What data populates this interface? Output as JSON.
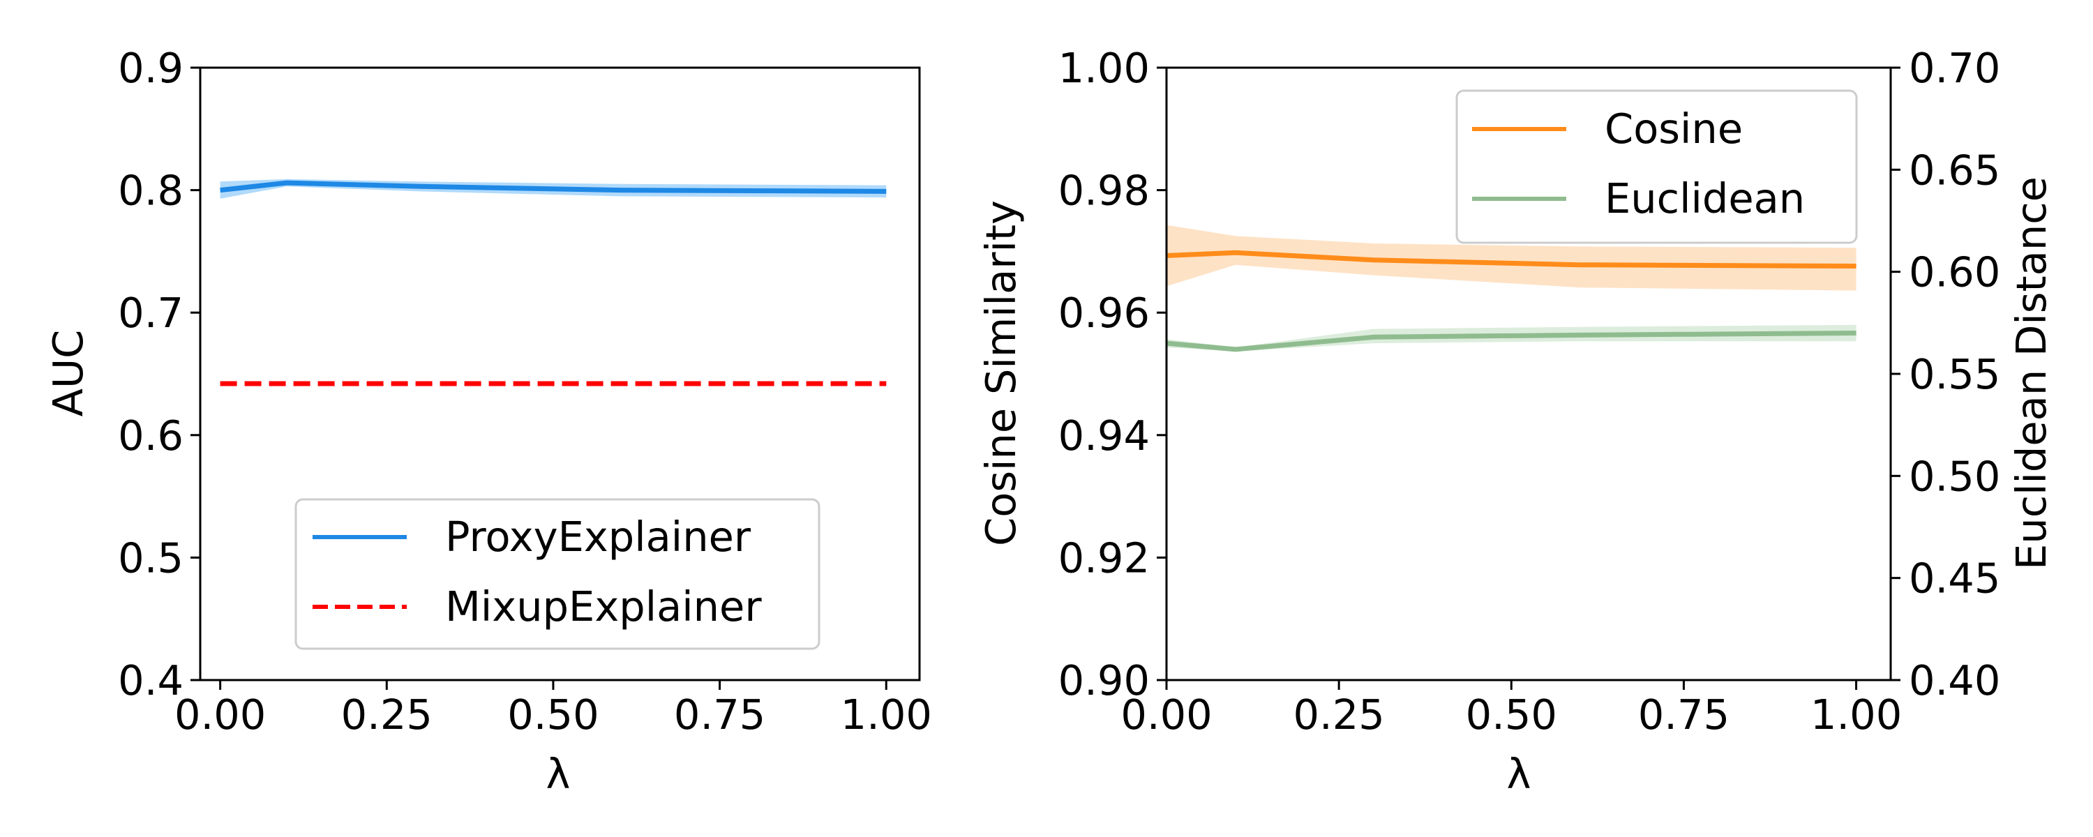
{
  "chart_data": [
    {
      "type": "line",
      "xlabel": "λ",
      "ylabel": "AUC",
      "xlim": [
        0.0,
        1.0
      ],
      "ylim": [
        0.4,
        0.9
      ],
      "xticks": [
        "0.00",
        "0.25",
        "0.50",
        "0.75",
        "1.00"
      ],
      "yticks": [
        "0.4",
        "0.5",
        "0.6",
        "0.7",
        "0.8",
        "0.9"
      ],
      "legend_position": "lower-center",
      "grid": false,
      "series": [
        {
          "name": "ProxyExplainer",
          "style": "solid",
          "color": "#1e88e5",
          "band_color": "#90caf9",
          "x": [
            0.0,
            0.1,
            0.3,
            0.6,
            1.0
          ],
          "y": [
            0.8,
            0.806,
            0.803,
            0.8,
            0.799
          ],
          "lower": [
            0.793,
            0.803,
            0.799,
            0.795,
            0.794
          ],
          "upper": [
            0.807,
            0.809,
            0.807,
            0.805,
            0.804
          ]
        },
        {
          "name": "MixupExplainer",
          "style": "dashed",
          "color": "#ff0000",
          "x": [
            0.0,
            1.0
          ],
          "y": [
            0.642,
            0.642
          ]
        }
      ]
    },
    {
      "type": "line",
      "xlabel": "λ",
      "ylabel": "Cosine Similarity",
      "ylabel_right": "Euclidean Distance",
      "xlim": [
        0.0,
        1.0
      ],
      "ylim": [
        0.9,
        1.0
      ],
      "ylim_right": [
        0.4,
        0.7
      ],
      "xticks": [
        "0.00",
        "0.25",
        "0.50",
        "0.75",
        "1.00"
      ],
      "yticks": [
        "0.90",
        "0.92",
        "0.94",
        "0.96",
        "0.98",
        "1.00"
      ],
      "yticks_right": [
        "0.40",
        "0.45",
        "0.50",
        "0.55",
        "0.60",
        "0.65",
        "0.70"
      ],
      "legend_position": "top-right",
      "grid": false,
      "series": [
        {
          "name": "Cosine",
          "axis": "left",
          "style": "solid",
          "color": "#ff8c1a",
          "band_color": "#fdd6ad",
          "x": [
            0.0,
            0.1,
            0.3,
            0.6,
            1.0
          ],
          "y": [
            0.9693,
            0.9698,
            0.9686,
            0.9678,
            0.9676
          ],
          "lower": [
            0.9643,
            0.9678,
            0.9661,
            0.9641,
            0.9636
          ],
          "upper": [
            0.9743,
            0.9725,
            0.9713,
            0.9708,
            0.9706
          ]
        },
        {
          "name": "Euclidean",
          "axis": "right",
          "style": "solid",
          "color": "#8fbc8f",
          "band_color": "#cfe6cf",
          "x": [
            0.0,
            0.1,
            0.3,
            0.6,
            1.0
          ],
          "y": [
            0.565,
            0.562,
            0.568,
            0.569,
            0.57
          ],
          "lower": [
            0.563,
            0.561,
            0.565,
            0.566,
            0.566
          ],
          "upper": [
            0.567,
            0.563,
            0.572,
            0.573,
            0.574
          ]
        }
      ]
    }
  ]
}
